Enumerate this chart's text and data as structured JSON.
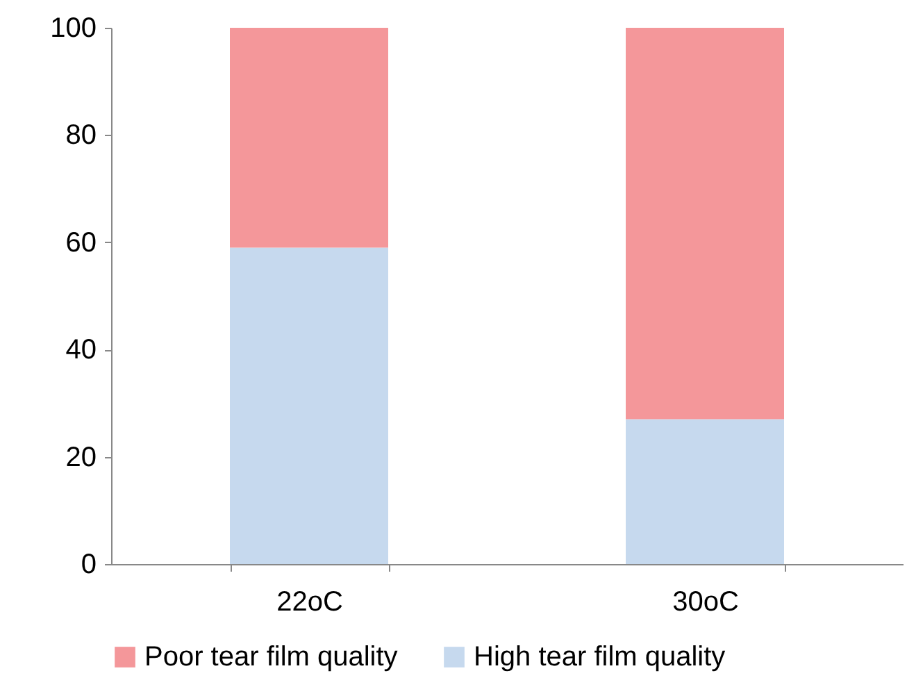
{
  "chart_data": {
    "type": "bar",
    "stacked": true,
    "categories": [
      "22oC",
      "30oC"
    ],
    "series": [
      {
        "name": "High tear film quality",
        "color": "#c6d9ee",
        "values": [
          59,
          27
        ]
      },
      {
        "name": "Poor tear film quality",
        "color": "#f4979a",
        "values": [
          41,
          73
        ]
      }
    ],
    "ylim": [
      0,
      100
    ],
    "yticks": [
      0,
      20,
      40,
      60,
      80,
      100
    ],
    "grid": false,
    "legend": "bottom"
  }
}
